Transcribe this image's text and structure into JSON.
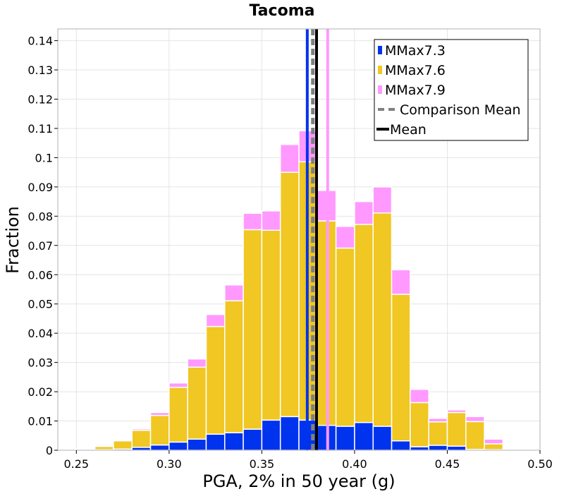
{
  "chart_data": {
    "type": "bar",
    "stacked": true,
    "title": "Tacoma",
    "xlabel": "PGA, 2% in 50 year (g)",
    "ylabel": "Fraction",
    "xlim": [
      0.24,
      0.5
    ],
    "ylim": [
      0,
      0.144
    ],
    "grid": true,
    "legend_position": "top-right",
    "bin_width": 0.01,
    "x_ticks": [
      {
        "value": 0.25,
        "label": "0.25"
      },
      {
        "value": 0.3,
        "label": "0.30"
      },
      {
        "value": 0.35,
        "label": "0.35"
      },
      {
        "value": 0.4,
        "label": "0.40"
      },
      {
        "value": 0.45,
        "label": "0.45"
      },
      {
        "value": 0.5,
        "label": "0.50"
      }
    ],
    "y_ticks": [
      {
        "value": 0,
        "label": "0"
      },
      {
        "value": 0.01,
        "label": "0.01"
      },
      {
        "value": 0.02,
        "label": "0.02"
      },
      {
        "value": 0.03,
        "label": "0.03"
      },
      {
        "value": 0.04,
        "label": "0.04"
      },
      {
        "value": 0.05,
        "label": "0.05"
      },
      {
        "value": 0.06,
        "label": "0.06"
      },
      {
        "value": 0.07,
        "label": "0.07"
      },
      {
        "value": 0.08,
        "label": "0.08"
      },
      {
        "value": 0.09,
        "label": "0.09"
      },
      {
        "value": 0.1,
        "label": "0.1"
      },
      {
        "value": 0.11,
        "label": "0.11"
      },
      {
        "value": 0.12,
        "label": "0.12"
      },
      {
        "value": 0.13,
        "label": "0.13"
      },
      {
        "value": 0.14,
        "label": "0.14"
      }
    ],
    "bin_centers": [
      0.255,
      0.265,
      0.275,
      0.285,
      0.295,
      0.305,
      0.315,
      0.325,
      0.335,
      0.345,
      0.355,
      0.365,
      0.375,
      0.385,
      0.395,
      0.405,
      0.415,
      0.425,
      0.435,
      0.445,
      0.455,
      0.465,
      0.475,
      0.485
    ],
    "series": [
      {
        "name": "MMax7.3",
        "color": "#0033ee",
        "values": [
          0.0001,
          0.0002,
          0.0004,
          0.001,
          0.0018,
          0.0028,
          0.0038,
          0.0055,
          0.006,
          0.0072,
          0.0103,
          0.0115,
          0.0103,
          0.0085,
          0.0082,
          0.0095,
          0.0082,
          0.0032,
          0.0012,
          0.0017,
          0.0014,
          0.0003,
          0.0002,
          0.0001
        ]
      },
      {
        "name": "MMax7.6",
        "color": "#f0c723",
        "values": [
          0.0003,
          0.0011,
          0.0028,
          0.0058,
          0.0101,
          0.0187,
          0.0246,
          0.0368,
          0.0451,
          0.0682,
          0.0649,
          0.0835,
          0.0883,
          0.0699,
          0.0609,
          0.0677,
          0.0729,
          0.0501,
          0.0151,
          0.008,
          0.0115,
          0.0095,
          0.002,
          0.0001
        ]
      },
      {
        "name": "MMax7.9",
        "color": "#ff99ff",
        "values": [
          0.0001,
          0.0002,
          0.0003,
          0.0005,
          0.001,
          0.0015,
          0.0028,
          0.0041,
          0.0054,
          0.0056,
          0.0066,
          0.0095,
          0.0106,
          0.0104,
          0.0074,
          0.0078,
          0.0089,
          0.0084,
          0.0045,
          0.0012,
          0.0009,
          0.0017,
          0.0016,
          0.0003
        ]
      }
    ],
    "vertical_lines": [
      {
        "name": "MMax7.3 mean",
        "x": 0.3745,
        "color": "#0033ee",
        "style": "solid"
      },
      {
        "name": "MMax7.9 mean",
        "x": 0.3855,
        "color": "#ff99ff",
        "style": "solid"
      },
      {
        "name": "Comparison Mean",
        "x": 0.3775,
        "color": "#808080",
        "style": "dashed"
      },
      {
        "name": "Mean",
        "x": 0.3795,
        "color": "#000000",
        "style": "solid"
      }
    ],
    "legend": [
      {
        "label": "MMax7.3",
        "color": "#0033ee",
        "style": "box"
      },
      {
        "label": "MMax7.6",
        "color": "#f0c723",
        "style": "box"
      },
      {
        "label": "MMax7.9",
        "color": "#ff99ff",
        "style": "box"
      },
      {
        "label": "Comparison Mean",
        "color": "#808080",
        "style": "dashed"
      },
      {
        "label": "Mean",
        "color": "#000000",
        "style": "solid"
      }
    ]
  }
}
